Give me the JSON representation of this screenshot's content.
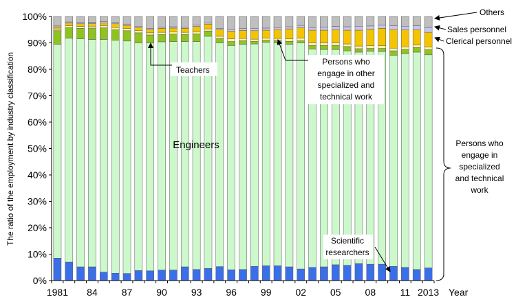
{
  "chart_data": {
    "type": "bar",
    "stacked": true,
    "ylabel": "The ratio of the employment by industry classification",
    "xlabel": "Year",
    "ylim": [
      0,
      100
    ],
    "y_ticks": [
      "0%",
      "10%",
      "20%",
      "30%",
      "40%",
      "50%",
      "60%",
      "70%",
      "80%",
      "90%",
      "100%"
    ],
    "grid": false,
    "categories": [
      "1981",
      "1982",
      "1983",
      "1984",
      "1985",
      "1986",
      "1987",
      "1988",
      "1989",
      "1990",
      "1991",
      "1992",
      "1993",
      "1994",
      "1995",
      "1996",
      "1997",
      "1998",
      "1999",
      "2000",
      "2001",
      "2002",
      "2003",
      "2004",
      "2005",
      "2006",
      "2007",
      "2008",
      "2009",
      "2010",
      "2011",
      "2012",
      "2013"
    ],
    "x_tick_labels": [
      "1981",
      "",
      "",
      "84",
      "",
      "",
      "87",
      "",
      "",
      "90",
      "",
      "",
      "93",
      "",
      "",
      "96",
      "",
      "",
      "99",
      "",
      "",
      "02",
      "",
      "",
      "05",
      "",
      "",
      "08",
      "",
      "",
      "11",
      "",
      "2013"
    ],
    "series": [
      {
        "key": "scientific",
        "color": "#3a6fe8",
        "values": [
          8.5,
          7.0,
          5.2,
          5.2,
          3.2,
          2.8,
          2.7,
          3.8,
          3.7,
          4.0,
          4.0,
          5.2,
          4.2,
          4.6,
          5.3,
          4.1,
          4.2,
          5.4,
          5.6,
          5.6,
          5.2,
          4.4,
          5.0,
          5.2,
          6.0,
          5.8,
          6.4,
          6.2,
          6.2,
          5.4,
          5.0,
          4.2,
          4.8
        ]
      },
      {
        "key": "engineers",
        "color": "#ccf8cc",
        "values": [
          81.0,
          84.8,
          86.3,
          86.1,
          88.1,
          88.2,
          88.0,
          86.2,
          86.3,
          86.4,
          86.5,
          85.3,
          86.3,
          87.9,
          84.7,
          84.9,
          85.3,
          84.2,
          84.6,
          84.4,
          84.3,
          85.6,
          82.6,
          82.3,
          81.5,
          81.2,
          80.1,
          80.6,
          80.5,
          79.9,
          80.9,
          82.3,
          80.7
        ]
      },
      {
        "key": "teachers",
        "color": "#8fc31f",
        "values": [
          5.1,
          4.0,
          4.0,
          4.3,
          4.4,
          4.0,
          3.9,
          3.8,
          3.0,
          2.8,
          2.8,
          2.7,
          2.9,
          2.0,
          1.7,
          1.5,
          1.3,
          1.0,
          0.8,
          0.9,
          1.1,
          0.8,
          1.4,
          1.5,
          1.5,
          1.6,
          1.3,
          1.1,
          1.2,
          1.7,
          1.6,
          1.7,
          1.9
        ]
      },
      {
        "key": "other_specialized",
        "color": "#fff2a8",
        "values": [
          0.6,
          0.7,
          0.7,
          0.7,
          0.8,
          0.8,
          0.8,
          0.8,
          0.8,
          0.8,
          0.8,
          0.8,
          0.8,
          0.8,
          0.8,
          1.0,
          0.9,
          0.8,
          0.8,
          0.8,
          0.9,
          1.0,
          1.0,
          1.0,
          1.0,
          1.0,
          1.0,
          1.0,
          1.0,
          1.0,
          1.0,
          1.0,
          1.0
        ]
      },
      {
        "key": "clerical",
        "color": "#f5c400",
        "values": [
          0.8,
          1.0,
          1.0,
          1.0,
          1.0,
          1.4,
          1.2,
          1.2,
          1.2,
          1.5,
          1.5,
          1.5,
          2.0,
          1.8,
          2.5,
          2.9,
          3.0,
          3.2,
          3.0,
          3.3,
          3.8,
          3.9,
          4.8,
          4.8,
          5.0,
          5.2,
          6.0,
          6.3,
          6.6,
          7.0,
          6.4,
          5.8,
          5.6
        ]
      },
      {
        "key": "sales",
        "color": "#c6c6ec",
        "values": [
          0.4,
          0.4,
          0.5,
          0.5,
          0.5,
          0.5,
          0.5,
          0.5,
          0.5,
          0.5,
          0.5,
          0.5,
          0.5,
          0.5,
          0.5,
          0.8,
          0.8,
          0.8,
          0.8,
          0.8,
          0.8,
          0.9,
          1.0,
          1.2,
          1.2,
          1.3,
          1.5,
          1.2,
          1.2,
          1.5,
          1.4,
          1.5,
          1.8
        ]
      },
      {
        "key": "others",
        "color": "#bfbfbf",
        "values": [
          3.6,
          2.1,
          2.3,
          2.2,
          2.0,
          2.3,
          2.9,
          3.7,
          4.5,
          4.0,
          3.9,
          4.0,
          3.3,
          2.4,
          4.5,
          4.8,
          4.5,
          4.6,
          4.4,
          4.2,
          3.9,
          3.4,
          4.2,
          4.0,
          3.8,
          3.9,
          3.7,
          3.6,
          3.3,
          3.5,
          3.7,
          3.5,
          4.2
        ]
      }
    ],
    "annotations": {
      "others": "Others",
      "sales": "Sales personnel",
      "clerical": "Clerical personnel",
      "teachers": "Teachers",
      "other_specialized": [
        "Persons who",
        "engage in other",
        "specialized and",
        "technical work"
      ],
      "engineers": "Engineers",
      "scientific": [
        "Scientific",
        "researchers"
      ],
      "brace_group": [
        "Persons who",
        "engage in",
        "specialized",
        "and technical",
        "work"
      ]
    }
  }
}
